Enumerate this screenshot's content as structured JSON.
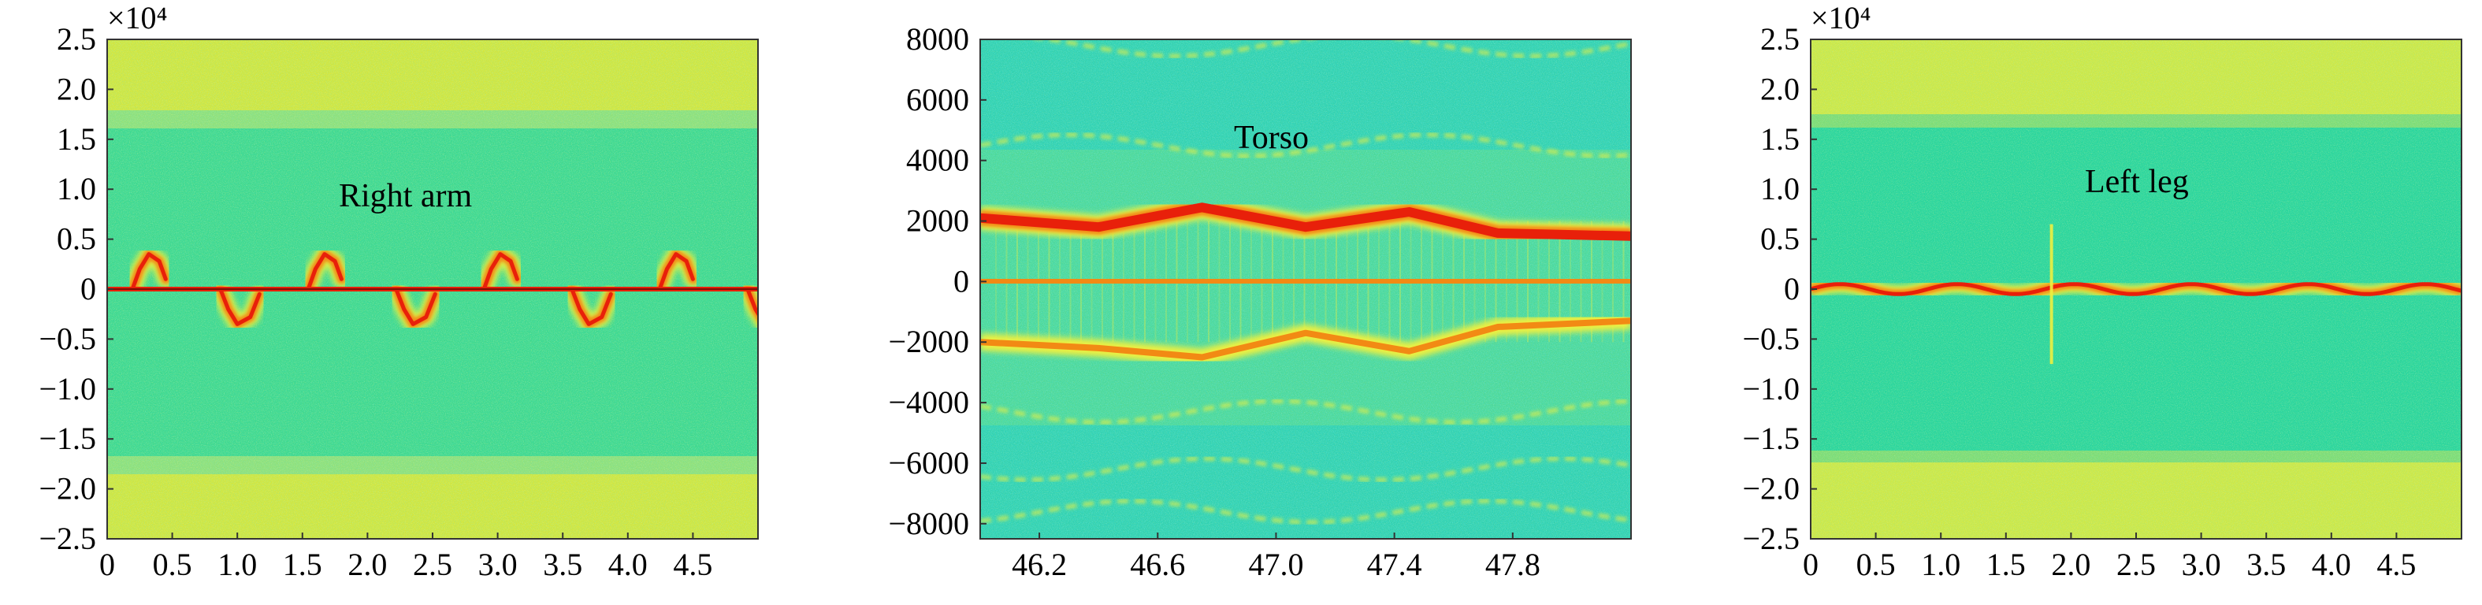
{
  "colors": {
    "background_green": "#3fd88e",
    "band_yellow": "#cfe845",
    "noise_cyan": "#1fd0c8",
    "signal_red": "#e8200a",
    "signal_orange": "#f28a14",
    "signal_yellow": "#eef040"
  },
  "chart_data": [
    {
      "type": "heatmap",
      "title": "Right arm",
      "colormap": "jet",
      "xlabel": "",
      "ylabel": "",
      "y_exponent_label": "×10⁴",
      "xlim": [
        0,
        5
      ],
      "ylim": [
        -2.5,
        2.5
      ],
      "xticks": [
        0,
        0.5,
        1.0,
        1.5,
        2.0,
        2.5,
        3.0,
        3.5,
        4.0,
        4.5
      ],
      "xtick_labels": [
        "0",
        "0.5",
        "1.0",
        "1.5",
        "2.0",
        "2.5",
        "3.0",
        "3.5",
        "4.0",
        "4.5"
      ],
      "yticks": [
        2.5,
        2.0,
        1.5,
        1.0,
        0.5,
        0,
        -0.5,
        -1.0,
        -1.5,
        -2.0,
        -2.5
      ],
      "ytick_labels": [
        "2.5",
        "2.0",
        "1.5",
        "1.0",
        "0.5",
        "0",
        "−0.5",
        "−1.0",
        "−1.5",
        "−2.0",
        "−2.5"
      ],
      "features": {
        "zero_line": 0,
        "swing_period": 1.35,
        "swing_phases": [
          0.25,
          1.6,
          2.95,
          4.3
        ],
        "swing_peak": 0.35,
        "swing_trough": -0.35,
        "outer_bands_abs": 1.6
      }
    },
    {
      "type": "heatmap",
      "title": "Torso",
      "colormap": "jet",
      "xlabel": "",
      "ylabel": "",
      "y_exponent_label": "",
      "xlim": [
        46.0,
        48.2
      ],
      "ylim": [
        -8500,
        8000
      ],
      "xticks": [
        46.2,
        46.6,
        47.0,
        47.4,
        47.8
      ],
      "xtick_labels": [
        "46.2",
        "46.6",
        "47.0",
        "47.4",
        "47.8"
      ],
      "yticks": [
        8000,
        6000,
        4000,
        2000,
        0,
        -2000,
        -4000,
        -6000,
        -8000
      ],
      "ytick_labels": [
        "8000",
        "6000",
        "4000",
        "2000",
        "0",
        "−2000",
        "−4000",
        "−6000",
        "−8000"
      ],
      "features": {
        "zero_line": 0,
        "main_positive_curve": [
          [
            46.0,
            2100
          ],
          [
            46.4,
            1800
          ],
          [
            46.75,
            2450
          ],
          [
            47.1,
            1800
          ],
          [
            47.45,
            2300
          ],
          [
            47.75,
            1600
          ],
          [
            48.2,
            1500
          ]
        ],
        "main_negative_curve": [
          [
            46.0,
            -2000
          ],
          [
            46.4,
            -2200
          ],
          [
            46.75,
            -2500
          ],
          [
            47.1,
            -1700
          ],
          [
            47.45,
            -2300
          ],
          [
            47.75,
            -1500
          ],
          [
            48.2,
            -1300
          ]
        ],
        "faint_curves": [
          4500,
          7800,
          -4300,
          -6200,
          -7600
        ]
      }
    },
    {
      "type": "heatmap",
      "title": "Left leg",
      "colormap": "jet",
      "xlabel": "",
      "ylabel": "",
      "y_exponent_label": "×10⁴",
      "xlim": [
        0,
        5
      ],
      "ylim": [
        -2.5,
        2.5
      ],
      "xticks": [
        0,
        0.5,
        1.0,
        1.5,
        2.0,
        2.5,
        3.0,
        3.5,
        4.0,
        4.5
      ],
      "xtick_labels": [
        "0",
        "0.5",
        "1.0",
        "1.5",
        "2.0",
        "2.5",
        "3.0",
        "3.5",
        "4.0",
        "4.5"
      ],
      "yticks": [
        2.5,
        2.0,
        1.5,
        1.0,
        0.5,
        0,
        -0.5,
        -1.0,
        -1.5,
        -2.0,
        -2.5
      ],
      "ytick_labels": [
        "2.5",
        "2.0",
        "1.5",
        "1.0",
        "0.5",
        "0",
        "−0.5",
        "−1.0",
        "−1.5",
        "−2.0",
        "−2.5"
      ],
      "features": {
        "zero_line": 0,
        "ripple_period": 0.9,
        "ripple_amplitude": 0.05,
        "spike_x": 1.85,
        "spike_range": [
          -0.75,
          0.65
        ],
        "outer_bands_abs": 1.6
      }
    }
  ]
}
